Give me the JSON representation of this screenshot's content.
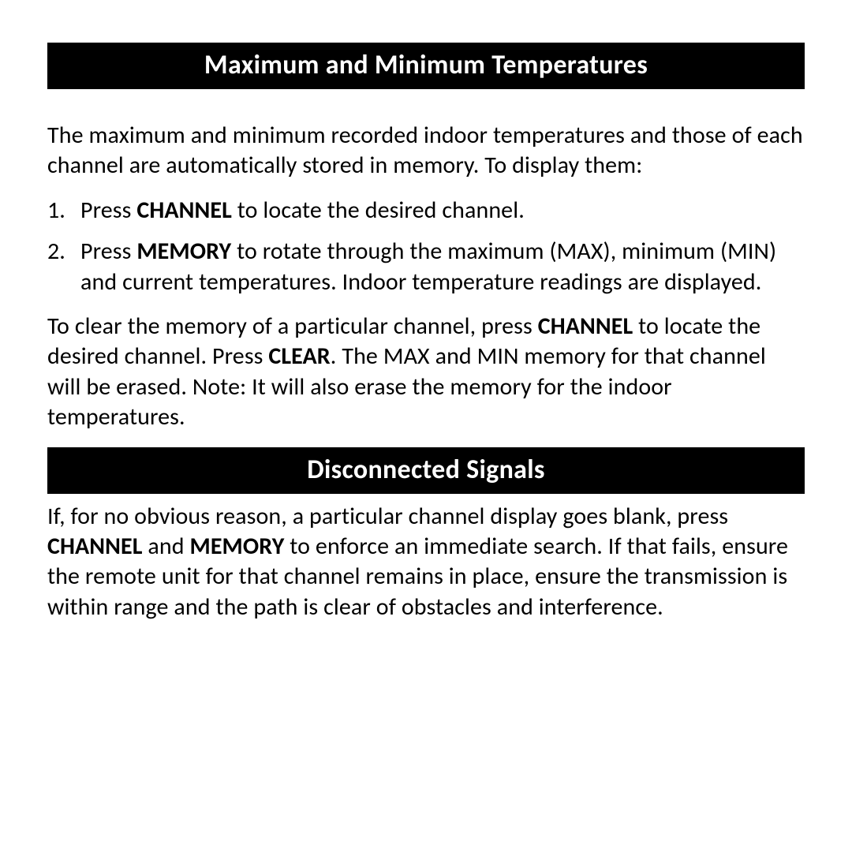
{
  "colors": {
    "header_bg": "#000000",
    "header_fg": "#ffffff",
    "body_bg": "#ffffff",
    "body_fg": "#000000"
  },
  "typography": {
    "header_fontsize_pt": 26,
    "body_fontsize_pt": 23,
    "header_fontweight": "bold",
    "body_fontweight": "normal",
    "bold_fontweight": "bold",
    "font_family": "Optima"
  },
  "section1": {
    "title": "Maximum and Minimum Temperatures",
    "intro": "The maximum and minimum recorded indoor temperatures and those of each channel are automatically stored in memory. To display them:",
    "steps": [
      {
        "num": "1.",
        "pre": "Press ",
        "b1": "CHANNEL",
        "post1": " to locate the desired channel."
      },
      {
        "num": "2.",
        "pre": "Press ",
        "b1": "MEMORY",
        "post1": " to rotate through the maximum (MAX), mini­mum (MIN) and current temperatures. Indoor temperature readings are displayed."
      }
    ],
    "clear_pre": "To clear the memory of a particular channel, press ",
    "clear_b1": "CHANNEL",
    "clear_mid1": " to locate the desired channel. Press ",
    "clear_b2": "CLEAR",
    "clear_post": ". The MAX and MIN memory for that channel will be erased. Note: It will also erase the memory for the indoor temperatures."
  },
  "section2": {
    "title": "Disconnected Signals",
    "p_pre": "If, for no obvious reason, a particular channel display goes blank, press ",
    "p_b1": "CHANNEL",
    "p_mid1": " and ",
    "p_b2": "MEMORY",
    "p_post": " to enforce an immediate search. If that fails, ensure the remote unit for that channel remains in place, ensure the transmission is within range and the path is clear of obstacles and interference."
  }
}
